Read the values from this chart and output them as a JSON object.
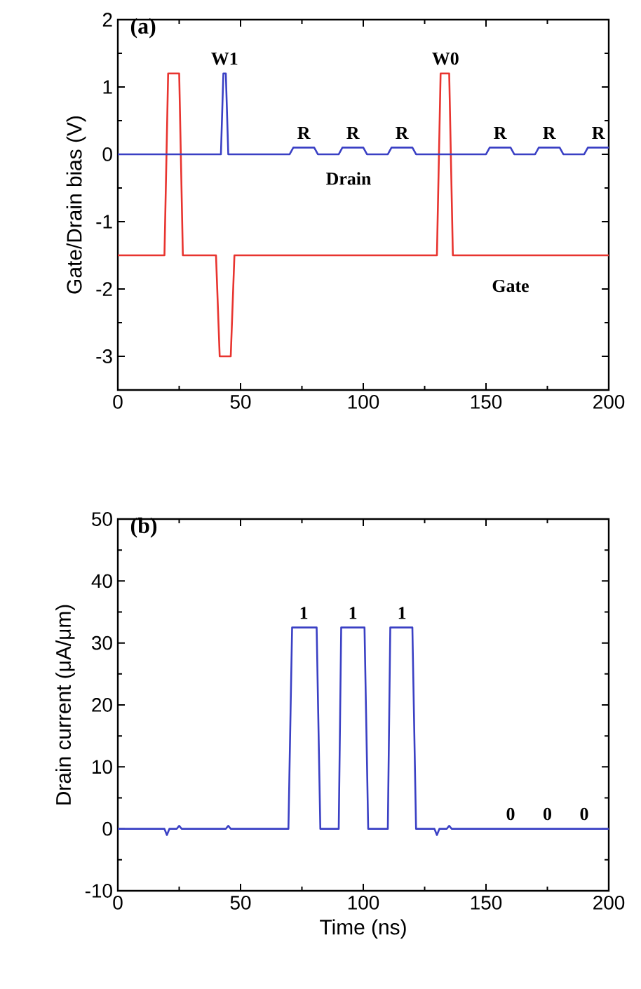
{
  "chart_data": [
    {
      "type": "line",
      "title": "(a)",
      "ylabel": "Gate/Drain bias (V)",
      "xlim": [
        0,
        200
      ],
      "ylim": [
        -3.5,
        2
      ],
      "xticks": [
        0,
        50,
        100,
        150,
        200
      ],
      "yticks": [
        -3,
        -2,
        -1,
        0,
        1,
        2
      ],
      "series": [
        {
          "name": "Gate",
          "color": "#e8342f",
          "x": [
            0,
            19,
            20.5,
            25,
            26.5,
            40,
            41.5,
            46,
            47.5,
            130,
            131.5,
            135,
            136.5,
            200
          ],
          "values": [
            -1.5,
            -1.5,
            1.2,
            1.2,
            -1.5,
            -1.5,
            -3,
            -3,
            -1.5,
            -1.5,
            1.2,
            1.2,
            -1.5,
            -1.5
          ]
        },
        {
          "name": "Drain",
          "color": "#3a40c4",
          "x": [
            0,
            42,
            43,
            44,
            45,
            70,
            71.5,
            80,
            81.5,
            90,
            91.5,
            100,
            101.5,
            110,
            111.5,
            120,
            121.5,
            150,
            151.5,
            160,
            161.5,
            170,
            171.5,
            180,
            181.5,
            190,
            191.5,
            200
          ],
          "values": [
            0,
            0,
            1.2,
            1.2,
            0,
            0,
            0.1,
            0.1,
            0,
            0,
            0.1,
            0.1,
            0,
            0,
            0.1,
            0.1,
            0,
            0,
            0.1,
            0.1,
            0,
            0,
            0.1,
            0.1,
            0,
            0,
            0.1,
            0.1
          ]
        }
      ],
      "annotations": [
        {
          "text": "W1",
          "x": 43.5,
          "y": 1.2
        },
        {
          "text": "W0",
          "x": 133.5,
          "y": 1.2
        },
        {
          "text": "R",
          "x": 75.75,
          "y": 0.1
        },
        {
          "text": "R",
          "x": 95.75,
          "y": 0.1
        },
        {
          "text": "R",
          "x": 115.75,
          "y": 0.1
        },
        {
          "text": "R",
          "x": 155.75,
          "y": 0.1
        },
        {
          "text": "R",
          "x": 175.75,
          "y": 0.1
        },
        {
          "text": "R",
          "x": 195.75,
          "y": 0.1
        }
      ]
    },
    {
      "type": "line",
      "title": "(b)",
      "xlabel": "Time (ns)",
      "ylabel": "Drain current (μA/μm)",
      "xlim": [
        0,
        200
      ],
      "ylim": [
        -10,
        50
      ],
      "xticks": [
        0,
        50,
        100,
        150,
        200
      ],
      "yticks": [
        -10,
        0,
        10,
        20,
        30,
        40,
        50
      ],
      "series": [
        {
          "color": "#3a40c4",
          "x": [
            0,
            19,
            20,
            21,
            24,
            25,
            26,
            44,
            45,
            46,
            69.5,
            71,
            81,
            82.5,
            90,
            91,
            100.5,
            102,
            110,
            111,
            120,
            121.5,
            129,
            130,
            131,
            134,
            135,
            136,
            200
          ],
          "values": [
            0,
            0,
            -1,
            0,
            0,
            0.5,
            0,
            0,
            0.5,
            0,
            0,
            32.5,
            32.5,
            0,
            0,
            32.5,
            32.5,
            0,
            0,
            32.5,
            32.5,
            0,
            0,
            -1,
            0,
            0,
            0.5,
            0,
            0
          ]
        }
      ],
      "annotations": [
        {
          "text": "1",
          "x": 75.75,
          "y": 32.5
        },
        {
          "text": "1",
          "x": 95.75,
          "y": 32.5
        },
        {
          "text": "1",
          "x": 115.75,
          "y": 32.5
        },
        {
          "text": "0",
          "x": 160,
          "y": 0
        },
        {
          "text": "0",
          "x": 175,
          "y": 0
        },
        {
          "text": "0",
          "x": 190,
          "y": 0
        }
      ]
    }
  ]
}
